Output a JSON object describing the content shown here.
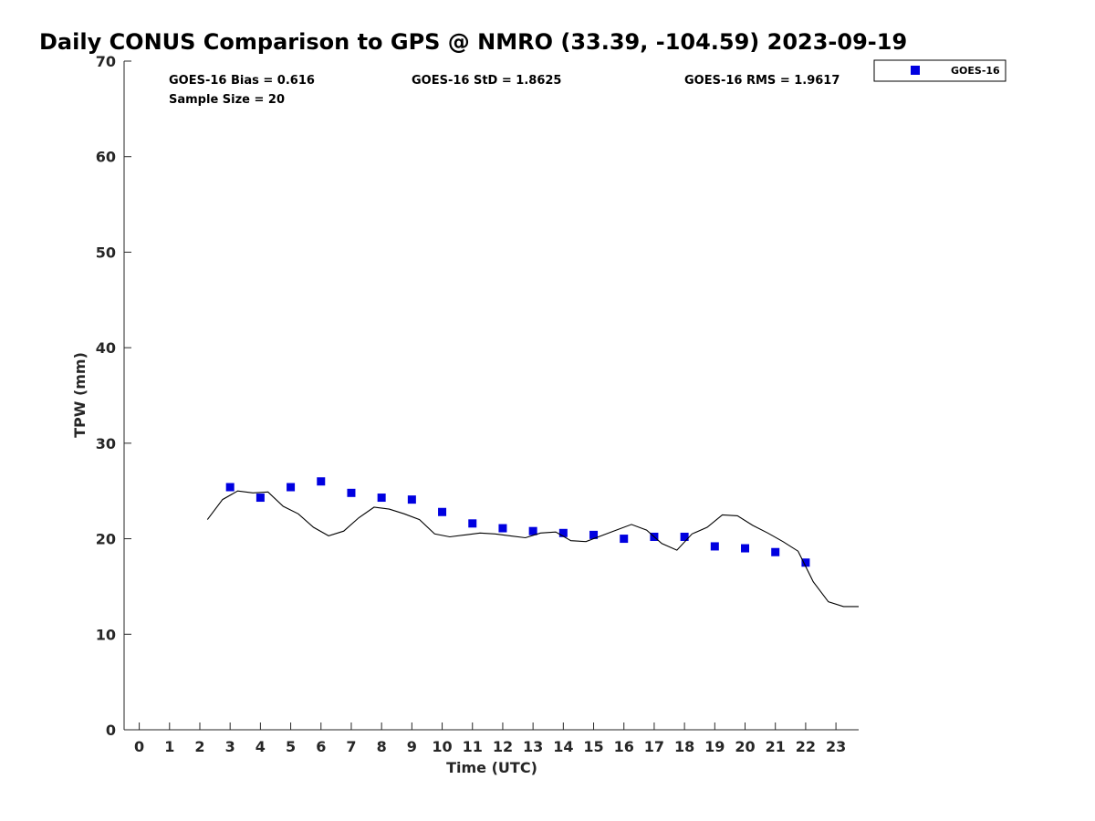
{
  "chart_data": {
    "type": "scatter",
    "title": "Daily CONUS Comparison to GPS @ NMRO (33.39, -104.59) 2023-09-19",
    "xlabel": "Time (UTC)",
    "ylabel": "TPW (mm)",
    "xlim": [
      -0.5,
      23.75
    ],
    "ylim": [
      0,
      70
    ],
    "x_ticks": [
      0,
      1,
      2,
      3,
      4,
      5,
      6,
      7,
      8,
      9,
      10,
      11,
      12,
      13,
      14,
      15,
      16,
      17,
      18,
      19,
      20,
      21,
      22,
      23
    ],
    "y_ticks": [
      0,
      10,
      20,
      30,
      40,
      50,
      60,
      70
    ],
    "grid": false,
    "legend_position": "top-right, outside plot",
    "stats": {
      "bias": "GOES-16 Bias = 0.616",
      "std": "GOES-16 StD = 1.8625",
      "rms": "GOES-16 RMS = 1.9617",
      "sample": "Sample Size = 20"
    },
    "series": [
      {
        "name": "GOES-16",
        "kind": "scatter",
        "marker": "square",
        "color": "#0000e0",
        "x": [
          3,
          4,
          5,
          6,
          7,
          8,
          9,
          10,
          11,
          12,
          13,
          14,
          15,
          16,
          17,
          18,
          19,
          20,
          21,
          22
        ],
        "y": [
          25.4,
          24.3,
          25.4,
          26.0,
          24.8,
          24.3,
          24.1,
          22.8,
          21.6,
          21.1,
          20.8,
          20.6,
          20.4,
          20.0,
          20.2,
          20.2,
          19.2,
          19.0,
          18.6,
          17.5
        ]
      },
      {
        "kind": "line",
        "color": "#000000",
        "x": [
          2.25,
          2.75,
          3.25,
          3.75,
          4.25,
          4.75,
          5.25,
          5.75,
          6.25,
          6.75,
          7.25,
          7.75,
          8.25,
          8.75,
          9.25,
          9.75,
          10.25,
          10.75,
          11.25,
          11.75,
          12.25,
          12.75,
          13.25,
          13.75,
          14.25,
          14.75,
          15.25,
          15.75,
          16.25,
          16.75,
          17.25,
          17.75,
          18.25,
          18.75,
          19.25,
          19.75,
          20.25,
          20.75,
          21.25,
          21.75,
          22.25,
          22.75,
          23.25,
          23.75
        ],
        "y": [
          22.0,
          24.1,
          25.0,
          24.8,
          24.9,
          23.4,
          22.6,
          21.2,
          20.3,
          20.8,
          22.2,
          23.3,
          23.1,
          22.6,
          22.0,
          20.5,
          20.2,
          20.4,
          20.6,
          20.5,
          20.3,
          20.1,
          20.6,
          20.7,
          19.8,
          19.7,
          20.3,
          20.9,
          21.5,
          20.9,
          19.5,
          18.8,
          20.5,
          21.2,
          22.5,
          22.4,
          21.4,
          20.6,
          19.7,
          18.7,
          15.5,
          13.4,
          12.9,
          12.9
        ]
      }
    ]
  }
}
